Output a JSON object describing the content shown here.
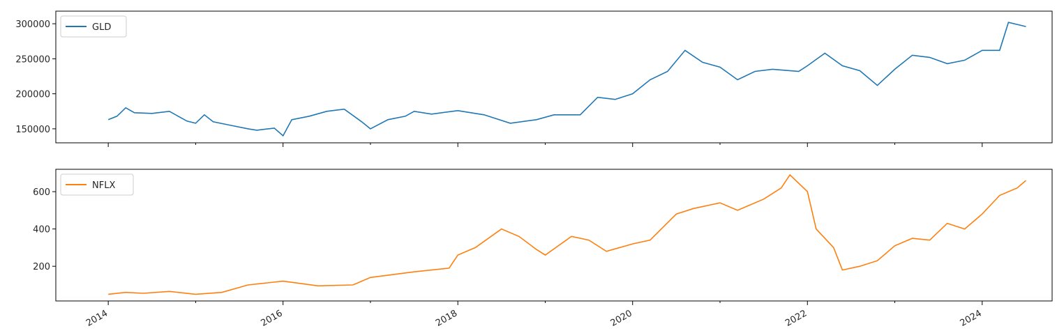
{
  "chart_data": [
    {
      "type": "line",
      "title": "",
      "xlabel": "",
      "ylabel": "",
      "xlim": [
        2013.4,
        2024.8
      ],
      "ylim": [
        130000,
        318000
      ],
      "legend": "top-left",
      "grid": false,
      "series": [
        {
          "name": "GLD",
          "color": "#1f77b4",
          "x": [
            2014.0,
            2014.1,
            2014.2,
            2014.3,
            2014.5,
            2014.7,
            2014.9,
            2015.0,
            2015.1,
            2015.2,
            2015.4,
            2015.6,
            2015.7,
            2015.9,
            2016.0,
            2016.1,
            2016.3,
            2016.5,
            2016.7,
            2016.9,
            2017.0,
            2017.2,
            2017.4,
            2017.5,
            2017.7,
            2018.0,
            2018.3,
            2018.6,
            2018.9,
            2019.1,
            2019.4,
            2019.6,
            2019.8,
            2020.0,
            2020.2,
            2020.4,
            2020.6,
            2020.8,
            2021.0,
            2021.2,
            2021.4,
            2021.6,
            2021.9,
            2022.0,
            2022.2,
            2022.4,
            2022.6,
            2022.8,
            2023.0,
            2023.2,
            2023.4,
            2023.6,
            2023.8,
            2024.0,
            2024.2,
            2024.3,
            2024.5
          ],
          "values": [
            163000,
            168000,
            180000,
            173000,
            172000,
            175000,
            161000,
            158000,
            170000,
            160000,
            155000,
            150000,
            148000,
            151000,
            140000,
            163000,
            168000,
            175000,
            178000,
            160000,
            150000,
            163000,
            168000,
            175000,
            171000,
            176000,
            170000,
            158000,
            163000,
            170000,
            170000,
            195000,
            192000,
            200000,
            220000,
            232000,
            262000,
            245000,
            238000,
            220000,
            232000,
            235000,
            232000,
            240000,
            258000,
            240000,
            233000,
            212000,
            235000,
            255000,
            252000,
            243000,
            248000,
            262000,
            262000,
            302000,
            296000
          ]
        }
      ]
    },
    {
      "type": "line",
      "title": "",
      "xlabel": "",
      "ylabel": "",
      "xlim": [
        2013.4,
        2024.8
      ],
      "ylim": [
        14,
        720
      ],
      "legend": "top-left",
      "grid": false,
      "x_ticks": [
        "2014",
        "2016",
        "2018",
        "2020",
        "2022",
        "2024"
      ],
      "series": [
        {
          "name": "NFLX",
          "color": "#ff7f0e",
          "x": [
            2014.0,
            2014.2,
            2014.4,
            2014.7,
            2015.0,
            2015.3,
            2015.6,
            2015.8,
            2016.0,
            2016.4,
            2016.8,
            2017.0,
            2017.5,
            2017.9,
            2018.0,
            2018.2,
            2018.5,
            2018.7,
            2018.9,
            2019.0,
            2019.3,
            2019.5,
            2019.7,
            2020.0,
            2020.2,
            2020.5,
            2020.7,
            2021.0,
            2021.2,
            2021.5,
            2021.7,
            2021.8,
            2022.0,
            2022.1,
            2022.3,
            2022.4,
            2022.6,
            2022.8,
            2023.0,
            2023.2,
            2023.4,
            2023.6,
            2023.8,
            2024.0,
            2024.2,
            2024.4,
            2024.5
          ],
          "values": [
            50,
            60,
            55,
            65,
            50,
            60,
            100,
            110,
            120,
            95,
            100,
            140,
            170,
            190,
            260,
            300,
            400,
            360,
            290,
            260,
            360,
            340,
            280,
            320,
            340,
            480,
            510,
            540,
            500,
            560,
            620,
            690,
            600,
            400,
            300,
            180,
            200,
            230,
            310,
            350,
            340,
            430,
            400,
            480,
            580,
            620,
            660
          ]
        }
      ]
    }
  ],
  "axes": {
    "top": {
      "y_ticks": [
        "150000",
        "200000",
        "250000",
        "300000"
      ]
    },
    "bottom": {
      "y_ticks": [
        "200",
        "400",
        "600"
      ]
    }
  }
}
